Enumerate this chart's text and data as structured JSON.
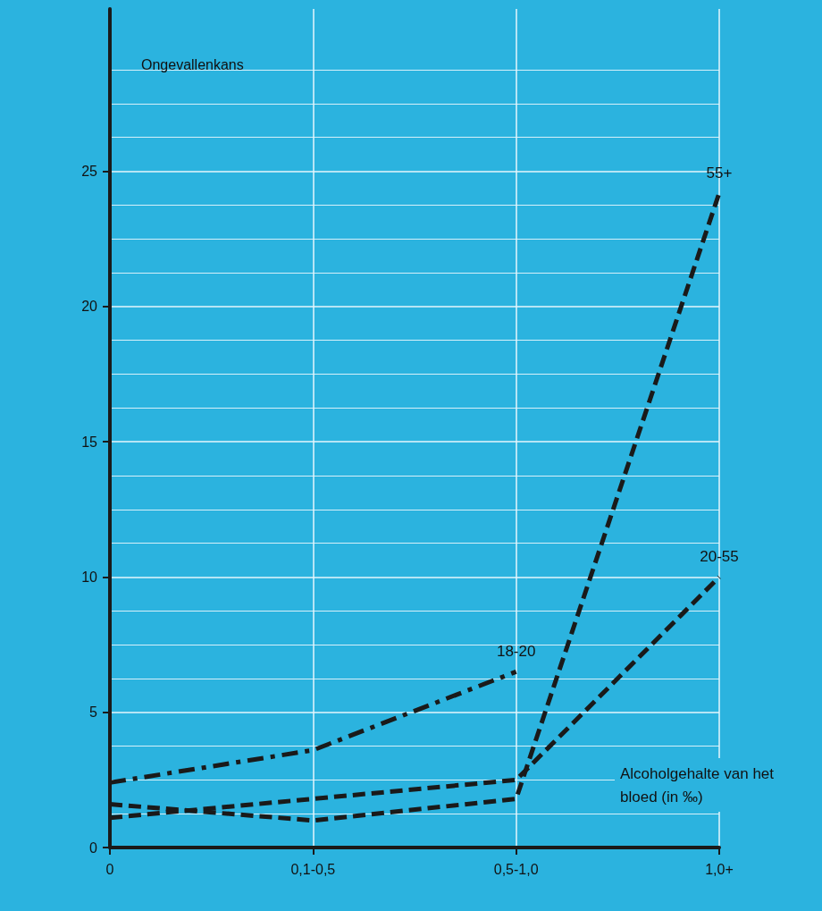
{
  "chart_data": {
    "type": "line",
    "ylabel": "Ongevallenkans",
    "xlabel": "Alcoholgehalte van het bloed (in ‰)",
    "categories": [
      "0",
      "0,1-0,5",
      "0,5-1,0",
      "1,0+"
    ],
    "series": [
      {
        "name": "18-20",
        "color": "#1a1a1a",
        "line_style": "dashdot",
        "values": [
          2.4,
          3.6,
          6.5,
          null
        ]
      },
      {
        "name": "20-55",
        "color": "#1a1a1a",
        "line_style": "dashed",
        "values": [
          1.1,
          1.8,
          2.5,
          10
        ]
      },
      {
        "name": "55+",
        "color": "#1a1a1a",
        "line_style": "dashed",
        "values": [
          1.6,
          1.0,
          1.8,
          24.2
        ]
      }
    ],
    "ylim": [
      0,
      31
    ],
    "yticks": [
      0,
      5,
      10,
      15,
      20,
      25
    ],
    "grid": true,
    "legend": false,
    "marker": "none"
  }
}
